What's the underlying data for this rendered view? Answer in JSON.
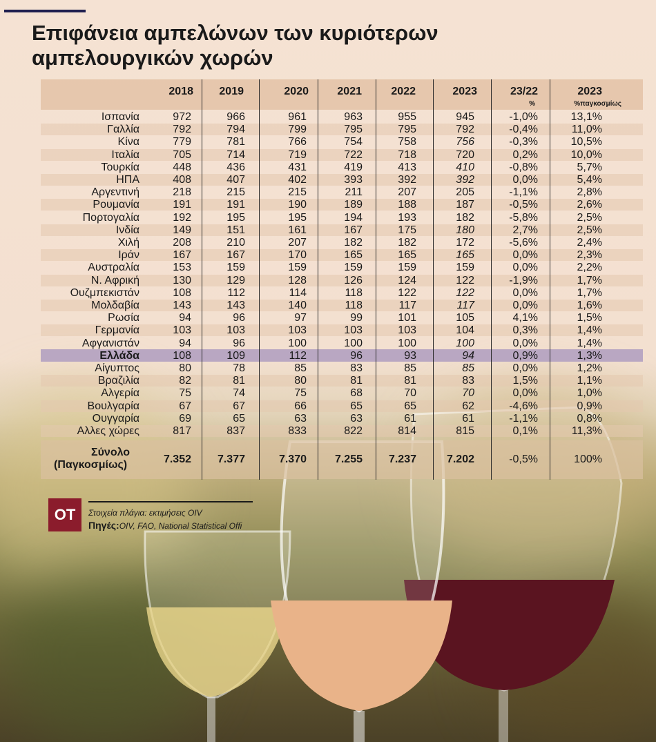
{
  "title_line1": "Επιφάνεια αμπελώνων των κυριότερων",
  "title_line2": "αμπελουργικών χωρών",
  "columns": [
    "2018",
    "2019",
    "2020",
    "2021",
    "2022",
    "2023",
    "23/22",
    "2023"
  ],
  "column_subs": [
    "",
    "",
    "",
    "",
    "",
    "",
    "%",
    "%παγκοσμίως"
  ],
  "chart_data": {
    "type": "table",
    "rows": [
      {
        "country": "Ισπανία",
        "values": [
          "972",
          "966",
          "961",
          "963",
          "955",
          "945"
        ],
        "italic_2023": false,
        "change": "-1,0%",
        "share": "13,1%"
      },
      {
        "country": "Γαλλία",
        "values": [
          "792",
          "794",
          "799",
          "795",
          "795",
          "792"
        ],
        "italic_2023": false,
        "change": "-0,4%",
        "share": "11,0%"
      },
      {
        "country": "Κίνα",
        "values": [
          "779",
          "781",
          "766",
          "754",
          "758",
          "756"
        ],
        "italic_2023": true,
        "change": "-0,3%",
        "share": "10,5%"
      },
      {
        "country": "Ιταλία",
        "values": [
          "705",
          "714",
          "719",
          "722",
          "718",
          "720"
        ],
        "italic_2023": false,
        "change": "0,2%",
        "share": "10,0%"
      },
      {
        "country": "Τουρκία",
        "values": [
          "448",
          "436",
          "431",
          "419",
          "413",
          "410"
        ],
        "italic_2023": true,
        "change": "-0,8%",
        "share": "5,7%"
      },
      {
        "country": "ΗΠΑ",
        "values": [
          "408",
          "407",
          "402",
          "393",
          "392",
          "392"
        ],
        "italic_2023": true,
        "change": "0,0%",
        "share": "5,4%"
      },
      {
        "country": "Αργεντινή",
        "values": [
          "218",
          "215",
          "215",
          "211",
          "207",
          "205"
        ],
        "italic_2023": false,
        "change": "-1,1%",
        "share": "2,8%"
      },
      {
        "country": "Ρουμανία",
        "values": [
          "191",
          "191",
          "190",
          "189",
          "188",
          "187"
        ],
        "italic_2023": false,
        "change": "-0,5%",
        "share": "2,6%"
      },
      {
        "country": "Πορτογαλία",
        "values": [
          "192",
          "195",
          "195",
          "194",
          "193",
          "182"
        ],
        "italic_2023": false,
        "change": "-5,8%",
        "share": "2,5%"
      },
      {
        "country": "Ινδία",
        "values": [
          "149",
          "151",
          "161",
          "167",
          "175",
          "180"
        ],
        "italic_2023": true,
        "change": "2,7%",
        "share": "2,5%"
      },
      {
        "country": "Χιλή",
        "values": [
          "208",
          "210",
          "207",
          "182",
          "182",
          "172"
        ],
        "italic_2023": false,
        "change": "-5,6%",
        "share": "2,4%"
      },
      {
        "country": "Ιράν",
        "values": [
          "167",
          "167",
          "170",
          "165",
          "165",
          "165"
        ],
        "italic_2023": true,
        "change": "0,0%",
        "share": "2,3%"
      },
      {
        "country": "Αυστραλία",
        "values": [
          "153",
          "159",
          "159",
          "159",
          "159",
          "159"
        ],
        "italic_2023": false,
        "change": "0,0%",
        "share": "2,2%"
      },
      {
        "country": "Ν. Αφρική",
        "values": [
          "130",
          "129",
          "128",
          "126",
          "124",
          "122"
        ],
        "italic_2023": false,
        "change": "-1,9%",
        "share": "1,7%"
      },
      {
        "country": "Ουζμπεκιστάν",
        "values": [
          "108",
          "112",
          "114",
          "118",
          "122",
          "122"
        ],
        "italic_2023": true,
        "change": "0,0%",
        "share": "1,7%"
      },
      {
        "country": "Μολδαβία",
        "values": [
          "143",
          "143",
          "140",
          "118",
          "117",
          "117"
        ],
        "italic_2023": true,
        "change": "0,0%",
        "share": "1,6%"
      },
      {
        "country": "Ρωσία",
        "values": [
          "94",
          "96",
          "97",
          "99",
          "101",
          "105"
        ],
        "italic_2023": false,
        "change": "4,1%",
        "share": "1,5%"
      },
      {
        "country": "Γερμανία",
        "values": [
          "103",
          "103",
          "103",
          "103",
          "103",
          "104"
        ],
        "italic_2023": false,
        "change": "0,3%",
        "share": "1,4%"
      },
      {
        "country": "Αφγανιστάν",
        "values": [
          "94",
          "96",
          "100",
          "100",
          "100",
          "100"
        ],
        "italic_2023": true,
        "change": "0,0%",
        "share": "1,4%"
      },
      {
        "country": "Ελλάδα",
        "values": [
          "108",
          "109",
          "112",
          "96",
          "93",
          "94"
        ],
        "italic_2023": true,
        "change": "0,9%",
        "share": "1,3%",
        "highlight": true
      },
      {
        "country": "Αίγυπτος",
        "values": [
          "80",
          "78",
          "85",
          "83",
          "85",
          "85"
        ],
        "italic_2023": true,
        "change": "0,0%",
        "share": "1,2%"
      },
      {
        "country": "Βραζιλία",
        "values": [
          "82",
          "81",
          "80",
          "81",
          "81",
          "83"
        ],
        "italic_2023": false,
        "change": "1,5%",
        "share": "1,1%"
      },
      {
        "country": "Αλγερία",
        "values": [
          "75",
          "74",
          "75",
          "68",
          "70",
          "70"
        ],
        "italic_2023": true,
        "change": "0,0%",
        "share": "1,0%"
      },
      {
        "country": "Βουλγαρία",
        "values": [
          "67",
          "67",
          "66",
          "65",
          "65",
          "62"
        ],
        "italic_2023": false,
        "change": "-4,6%",
        "share": "0,9%"
      },
      {
        "country": "Ουγγαρία",
        "values": [
          "69",
          "65",
          "63",
          "63",
          "61",
          "61"
        ],
        "italic_2023": false,
        "change": "-1,1%",
        "share": "0,8%"
      },
      {
        "country": "Αλλες χώρες",
        "values": [
          "817",
          "837",
          "833",
          "822",
          "814",
          "815"
        ],
        "italic_2023": false,
        "change": "0,1%",
        "share": "11,3%"
      }
    ],
    "total": {
      "label_line1": "Σύνολο",
      "label_line2": "(Παγκοσμίως)",
      "values": [
        "7.352",
        "7.377",
        "7.370",
        "7.255",
        "7.237",
        "7.202"
      ],
      "change": "-0,5%",
      "share": "100%"
    }
  },
  "source": {
    "logo": "OT",
    "note": "Στοιχεία πλάγια: εκτιμήσεις OIV",
    "label": "Πηγές:",
    "value": "OIV, FAO, National Statistical Offi"
  },
  "colors": {
    "highlight_row": "#b9a7c2",
    "logo_bg": "#8b1c2c",
    "top_rule": "#1f1f4f"
  }
}
